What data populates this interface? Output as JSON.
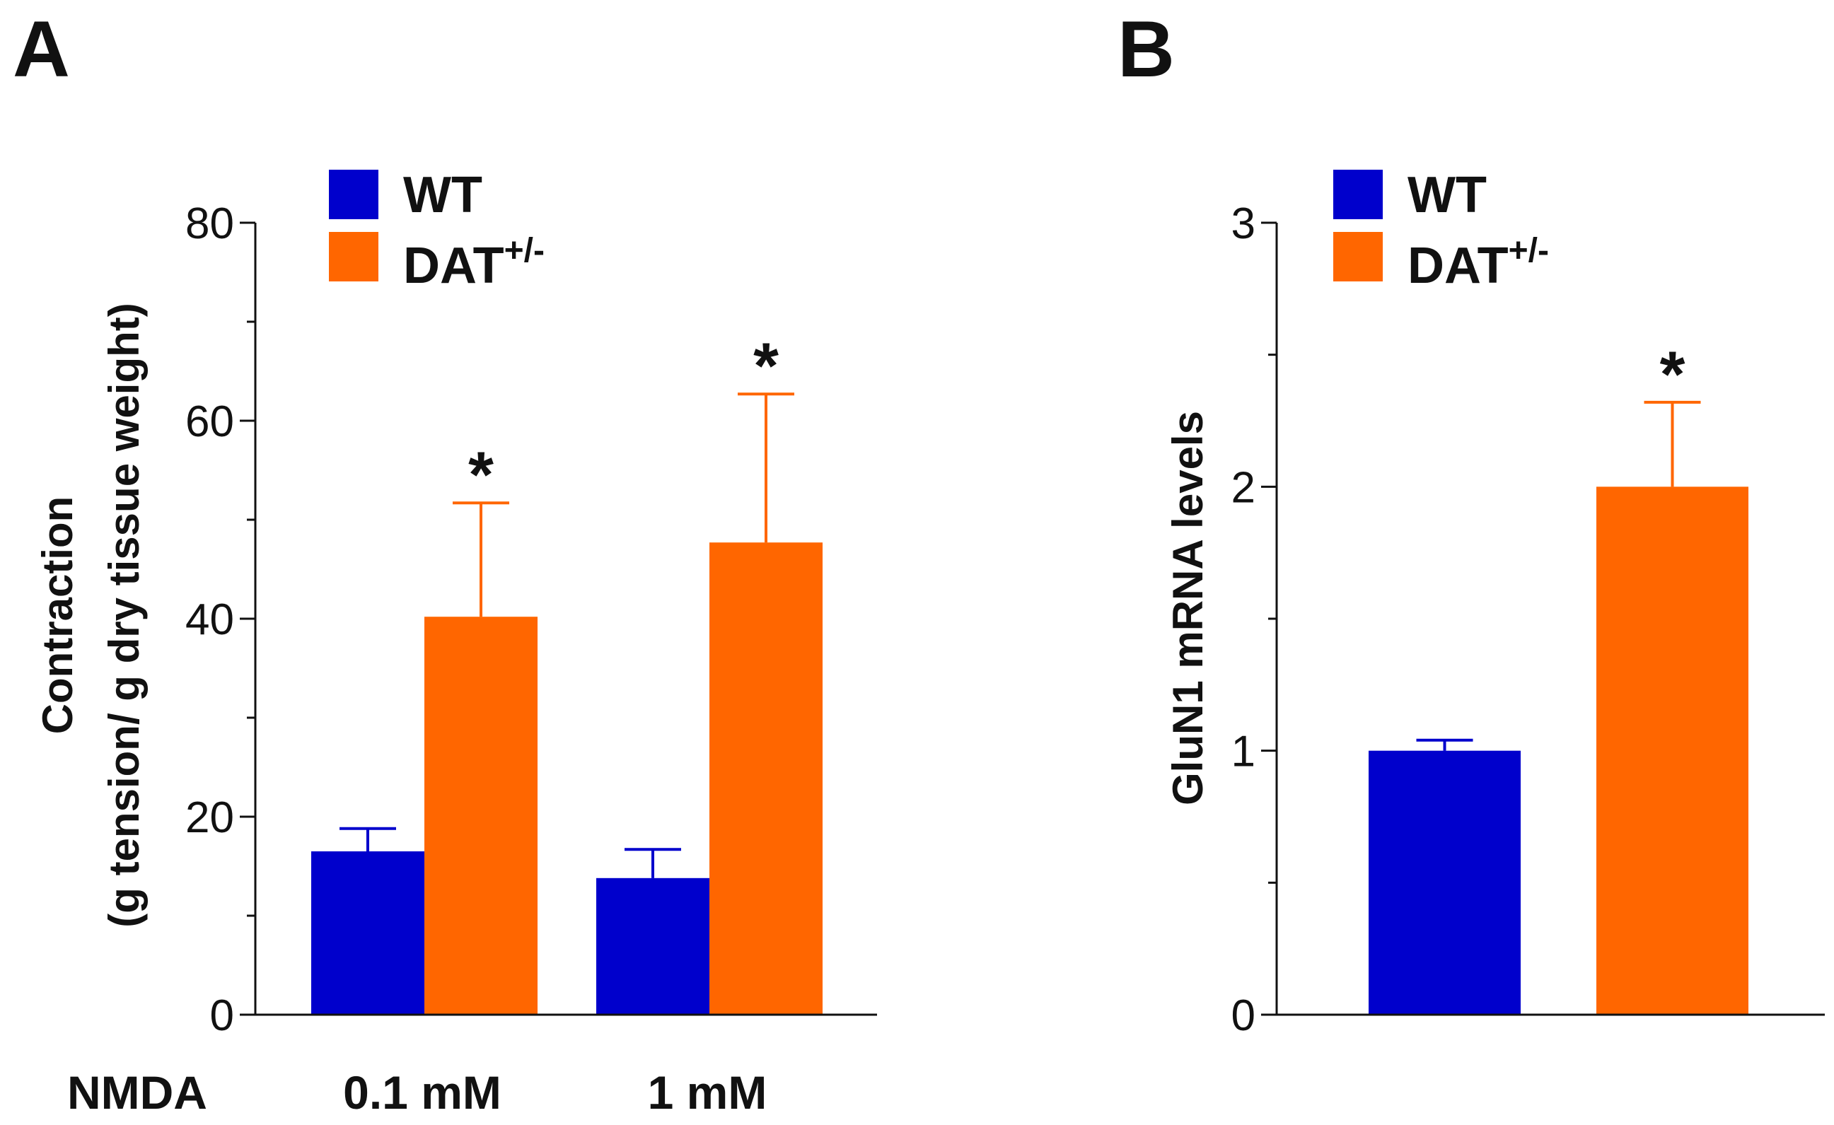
{
  "chart_data": [
    {
      "panel": "A",
      "type": "bar",
      "categories": [
        "0.1 mM",
        "1 mM"
      ],
      "x_prefix_label": "NMDA",
      "series": [
        {
          "name": "WT",
          "values": [
            16.5,
            13.8
          ],
          "errors": [
            2.3,
            2.9
          ],
          "color": "#0000cc"
        },
        {
          "name": "DAT+/-",
          "values": [
            40.2,
            47.7
          ],
          "errors": [
            11.5,
            15.0
          ],
          "color": "#ff6600"
        }
      ],
      "significance": [
        [
          false,
          true
        ],
        [
          false,
          true
        ]
      ],
      "ylabel_line1": "Contraction",
      "ylabel_line2": "(g tension/ g dry tissue weight)",
      "ylim": [
        0,
        80
      ],
      "yticks": [
        0,
        20,
        40,
        60,
        80
      ],
      "yticks_minor": [
        10,
        30,
        50,
        70
      ],
      "legend": [
        {
          "base": "WT",
          "sup": "",
          "color": "#0000cc"
        },
        {
          "base": "DAT",
          "sup": "+/-",
          "color": "#ff6600"
        }
      ],
      "legend_position": "top-left"
    },
    {
      "panel": "B",
      "type": "bar",
      "categories": [
        "WT",
        "DAT+/-"
      ],
      "values": [
        1.0,
        2.0
      ],
      "errors": [
        0.04,
        0.32
      ],
      "colors": [
        "#0000cc",
        "#ff6600"
      ],
      "significance": [
        false,
        true
      ],
      "ylabel": "GluN1 mRNA levels",
      "ylim": [
        0,
        3
      ],
      "yticks": [
        0,
        1,
        2,
        3
      ],
      "yticks_minor": [
        0.5,
        1.5,
        2.5
      ],
      "legend": [
        {
          "base": "WT",
          "sup": "",
          "color": "#0000cc"
        },
        {
          "base": "DAT",
          "sup": "+/-",
          "color": "#ff6600"
        }
      ],
      "legend_position": "top-left"
    }
  ],
  "significance_marker": "*"
}
